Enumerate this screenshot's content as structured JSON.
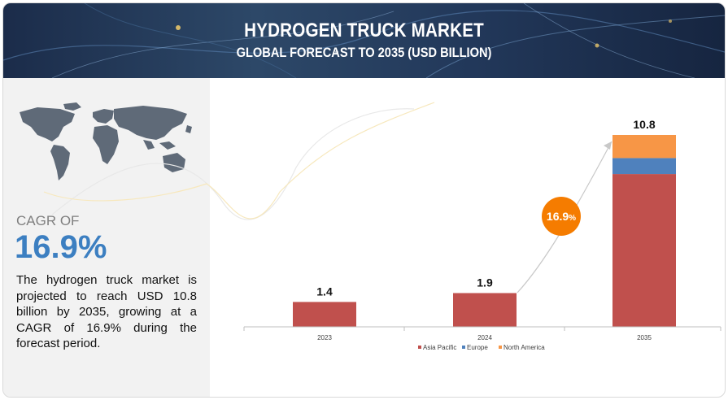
{
  "header": {
    "title": "HYDROGEN TRUCK MARKET",
    "subtitle": "GLOBAL FORECAST TO 2035 (USD BILLION)"
  },
  "summary": {
    "cagr_label": "CAGR OF",
    "cagr_value": "16.9%",
    "description": "The hydrogen truck market is projected to reach USD 10.8 billion by 2035, growing at a CAGR of 16.9% during the forecast period."
  },
  "chart_data": {
    "type": "bar",
    "stacked": true,
    "title": "HYDROGEN TRUCK MARKET",
    "subtitle": "GLOBAL FORECAST TO 2035 (USD BILLION)",
    "categories": [
      "2023",
      "2024",
      "2035"
    ],
    "totals": [
      1.4,
      1.9,
      10.8
    ],
    "total_labels": [
      "1.4",
      "1.9",
      "10.8"
    ],
    "series": [
      {
        "name": "Asia Pacific",
        "values": [
          1.4,
          1.9,
          8.6
        ]
      },
      {
        "name": "Europe",
        "values": [
          0,
          0,
          0.9
        ]
      },
      {
        "name": "North America",
        "values": [
          0,
          0,
          1.3
        ]
      }
    ],
    "colors": [
      "#c0504d",
      "#4f81bd",
      "#f79646"
    ],
    "cagr_badge": {
      "number": "16.9",
      "unit": "%",
      "color": "#f57c00"
    },
    "ylim": [
      0,
      11
    ],
    "legend": "bottom",
    "grid": false
  }
}
